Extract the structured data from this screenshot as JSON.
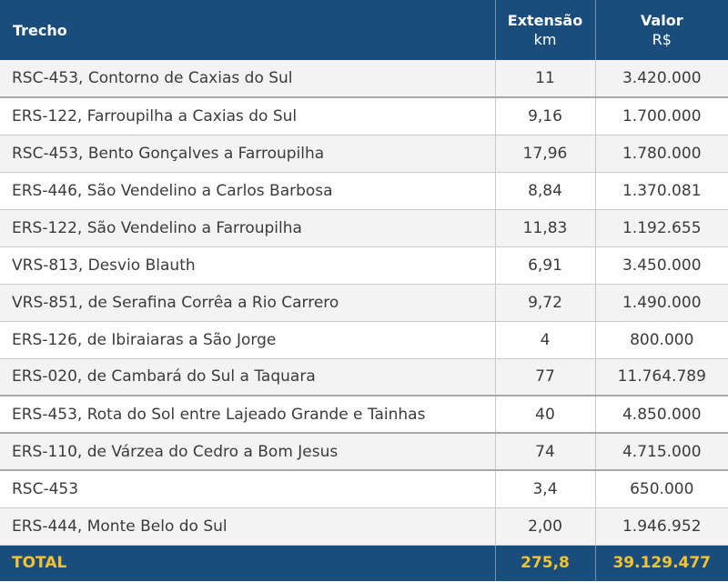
{
  "header": {
    "trecho": "Trecho",
    "extensao": "Extensão",
    "extensao_unit": "km",
    "valor": "Valor",
    "valor_unit": "R$"
  },
  "rows": [
    {
      "trecho": "RSC-453, Contorno de Caxias do Sul",
      "extensao": "11",
      "valor": "3.420.000"
    },
    {
      "trecho": "ERS-122, Farroupilha a Caxias do Sul",
      "extensao": "9,16",
      "valor": "1.700.000"
    },
    {
      "trecho": "RSC-453, Bento Gonçalves a Farroupilha",
      "extensao": "17,96",
      "valor": "1.780.000"
    },
    {
      "trecho": "ERS-446, São Vendelino a Carlos Barbosa",
      "extensao": "8,84",
      "valor": "1.370.081"
    },
    {
      "trecho": "ERS-122, São Vendelino a Farroupilha",
      "extensao": "11,83",
      "valor": "1.192.655"
    },
    {
      "trecho": "VRS-813, Desvio Blauth",
      "extensao": "6,91",
      "valor": "3.450.000"
    },
    {
      "trecho": "VRS-851, de Serafina Corrêa a Rio Carrero",
      "extensao": "9,72",
      "valor": "1.490.000"
    },
    {
      "trecho": "ERS-126, de Ibiraiaras a São Jorge",
      "extensao": "4",
      "valor": "800.000"
    },
    {
      "trecho": "ERS-020, de Cambará do Sul a Taquara",
      "extensao": "77",
      "valor": "11.764.789"
    },
    {
      "trecho": "ERS-453, Rota do Sol entre Lajeado Grande e Tainhas",
      "extensao": "40",
      "valor": "4.850.000"
    },
    {
      "trecho": "ERS-110, de Várzea do Cedro a Bom Jesus",
      "extensao": "74",
      "valor": "4.715.000"
    },
    {
      "trecho": "RSC-453",
      "extensao": "3,4",
      "valor": "650.000"
    },
    {
      "trecho": "ERS-444, Monte Belo do Sul",
      "extensao": "2,00",
      "valor": "1.946.952"
    }
  ],
  "total": {
    "label": "TOTAL",
    "extensao": "275,8",
    "valor": "39.129.477"
  },
  "colors": {
    "header_bg": "#1a4d7c",
    "header_text": "#ffffff",
    "total_text": "#f4c430"
  }
}
